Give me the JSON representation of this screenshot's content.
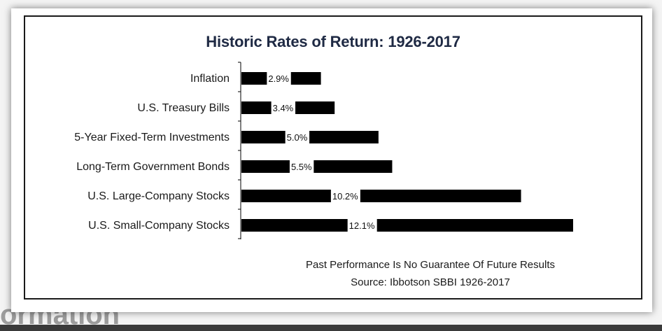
{
  "chart_data": {
    "type": "bar",
    "orientation": "horizontal",
    "title": "Historic Rates of Return: 1926-2017",
    "categories": [
      "Inflation",
      "U.S. Treasury Bills",
      "5-Year Fixed-Term Investments",
      "Long-Term Government Bonds",
      "U.S. Large-Company Stocks",
      "U.S. Small-Company Stocks"
    ],
    "values": [
      2.9,
      3.4,
      5.0,
      5.5,
      10.2,
      12.1
    ],
    "value_labels": [
      "2.9%",
      "3.4%",
      "5.0%",
      "5.5%",
      "10.2%",
      "12.1%"
    ],
    "xlim": [
      0,
      12.1
    ],
    "bar_color": "#000000",
    "grid": false
  },
  "footnotes": {
    "line1": "Past Performance Is No Guarantee Of Future Results",
    "line2": "Source: Ibbotson SBBI 1926-2017"
  },
  "background_text": "ormation"
}
